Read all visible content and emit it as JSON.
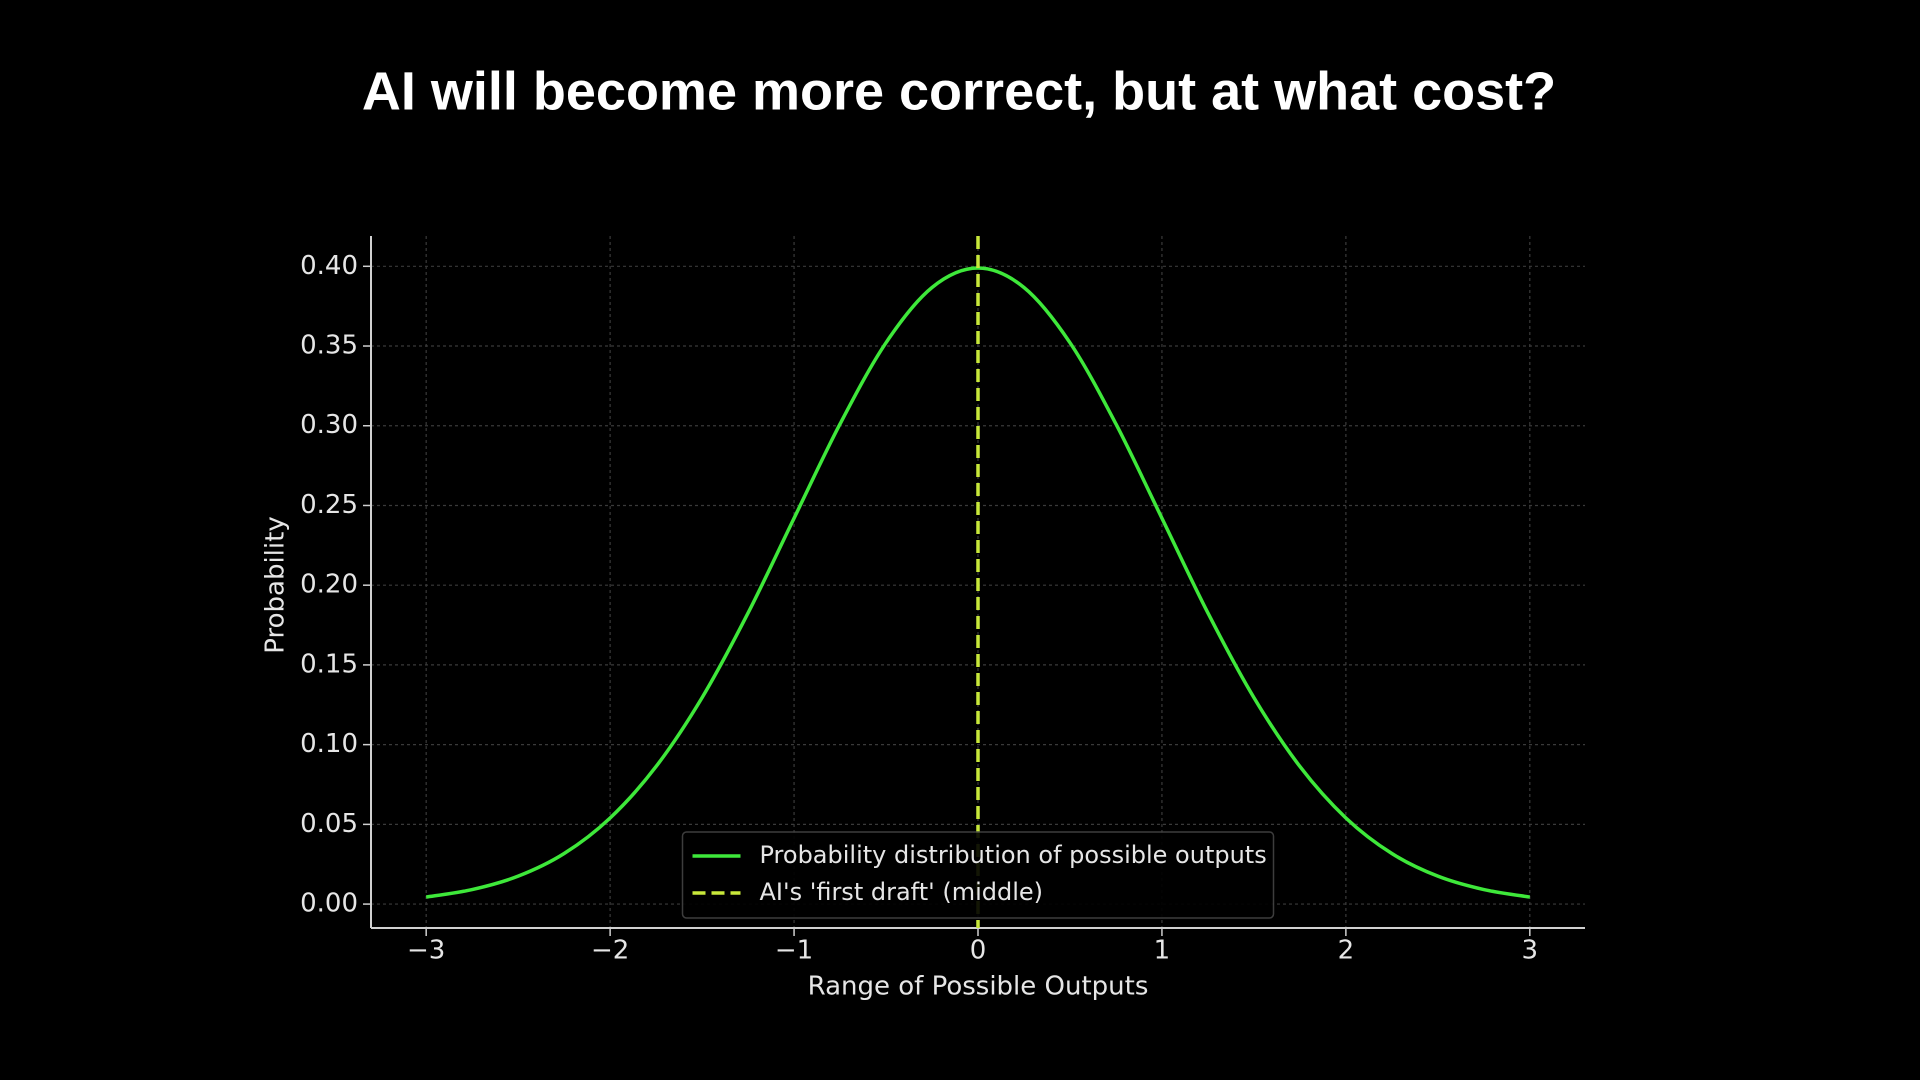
{
  "chart_data": {
    "type": "line",
    "title": "AI will become more correct, but at what cost?",
    "xlabel": "Range of Possible Outputs",
    "ylabel": "Probability",
    "series": [
      {
        "name": "Probability distribution of possible outputs",
        "color": "#3ee83a",
        "x": [
          -3,
          -2.75,
          -2.5,
          -2.25,
          -2,
          -1.75,
          -1.5,
          -1.25,
          -1,
          -0.75,
          -0.5,
          -0.25,
          0,
          0.25,
          0.5,
          0.75,
          1,
          1.25,
          1.5,
          1.75,
          2,
          2.25,
          2.5,
          2.75,
          3
        ],
        "values": [
          0.0044,
          0.0091,
          0.0175,
          0.0317,
          0.054,
          0.0863,
          0.1295,
          0.1826,
          0.242,
          0.3011,
          0.3521,
          0.3867,
          0.3989,
          0.3867,
          0.3521,
          0.3011,
          0.242,
          0.1826,
          0.1295,
          0.0863,
          0.054,
          0.0317,
          0.0175,
          0.0091,
          0.0044
        ]
      }
    ],
    "vline": {
      "name": "AI's 'first draft' (middle)",
      "x": 0,
      "color": "#c8e83a",
      "dashed": true
    },
    "xlim": [
      -3.3,
      3.3
    ],
    "ylim": [
      -0.015,
      0.419
    ],
    "xticks": [
      {
        "value": -3,
        "label": "−3"
      },
      {
        "value": -2,
        "label": "−2"
      },
      {
        "value": -1,
        "label": "−1"
      },
      0,
      1,
      2,
      3
    ],
    "yticks": [
      {
        "value": 0,
        "label": "0.00"
      },
      {
        "value": 0.05,
        "label": "0.05"
      },
      {
        "value": 0.1,
        "label": "0.10"
      },
      {
        "value": 0.15,
        "label": "0.15"
      },
      {
        "value": 0.2,
        "label": "0.20"
      },
      {
        "value": 0.25,
        "label": "0.25"
      },
      {
        "value": 0.3,
        "label": "0.30"
      },
      {
        "value": 0.35,
        "label": "0.35"
      },
      {
        "value": 0.4,
        "label": "0.40"
      }
    ],
    "grid": true,
    "legend": "lower center"
  }
}
